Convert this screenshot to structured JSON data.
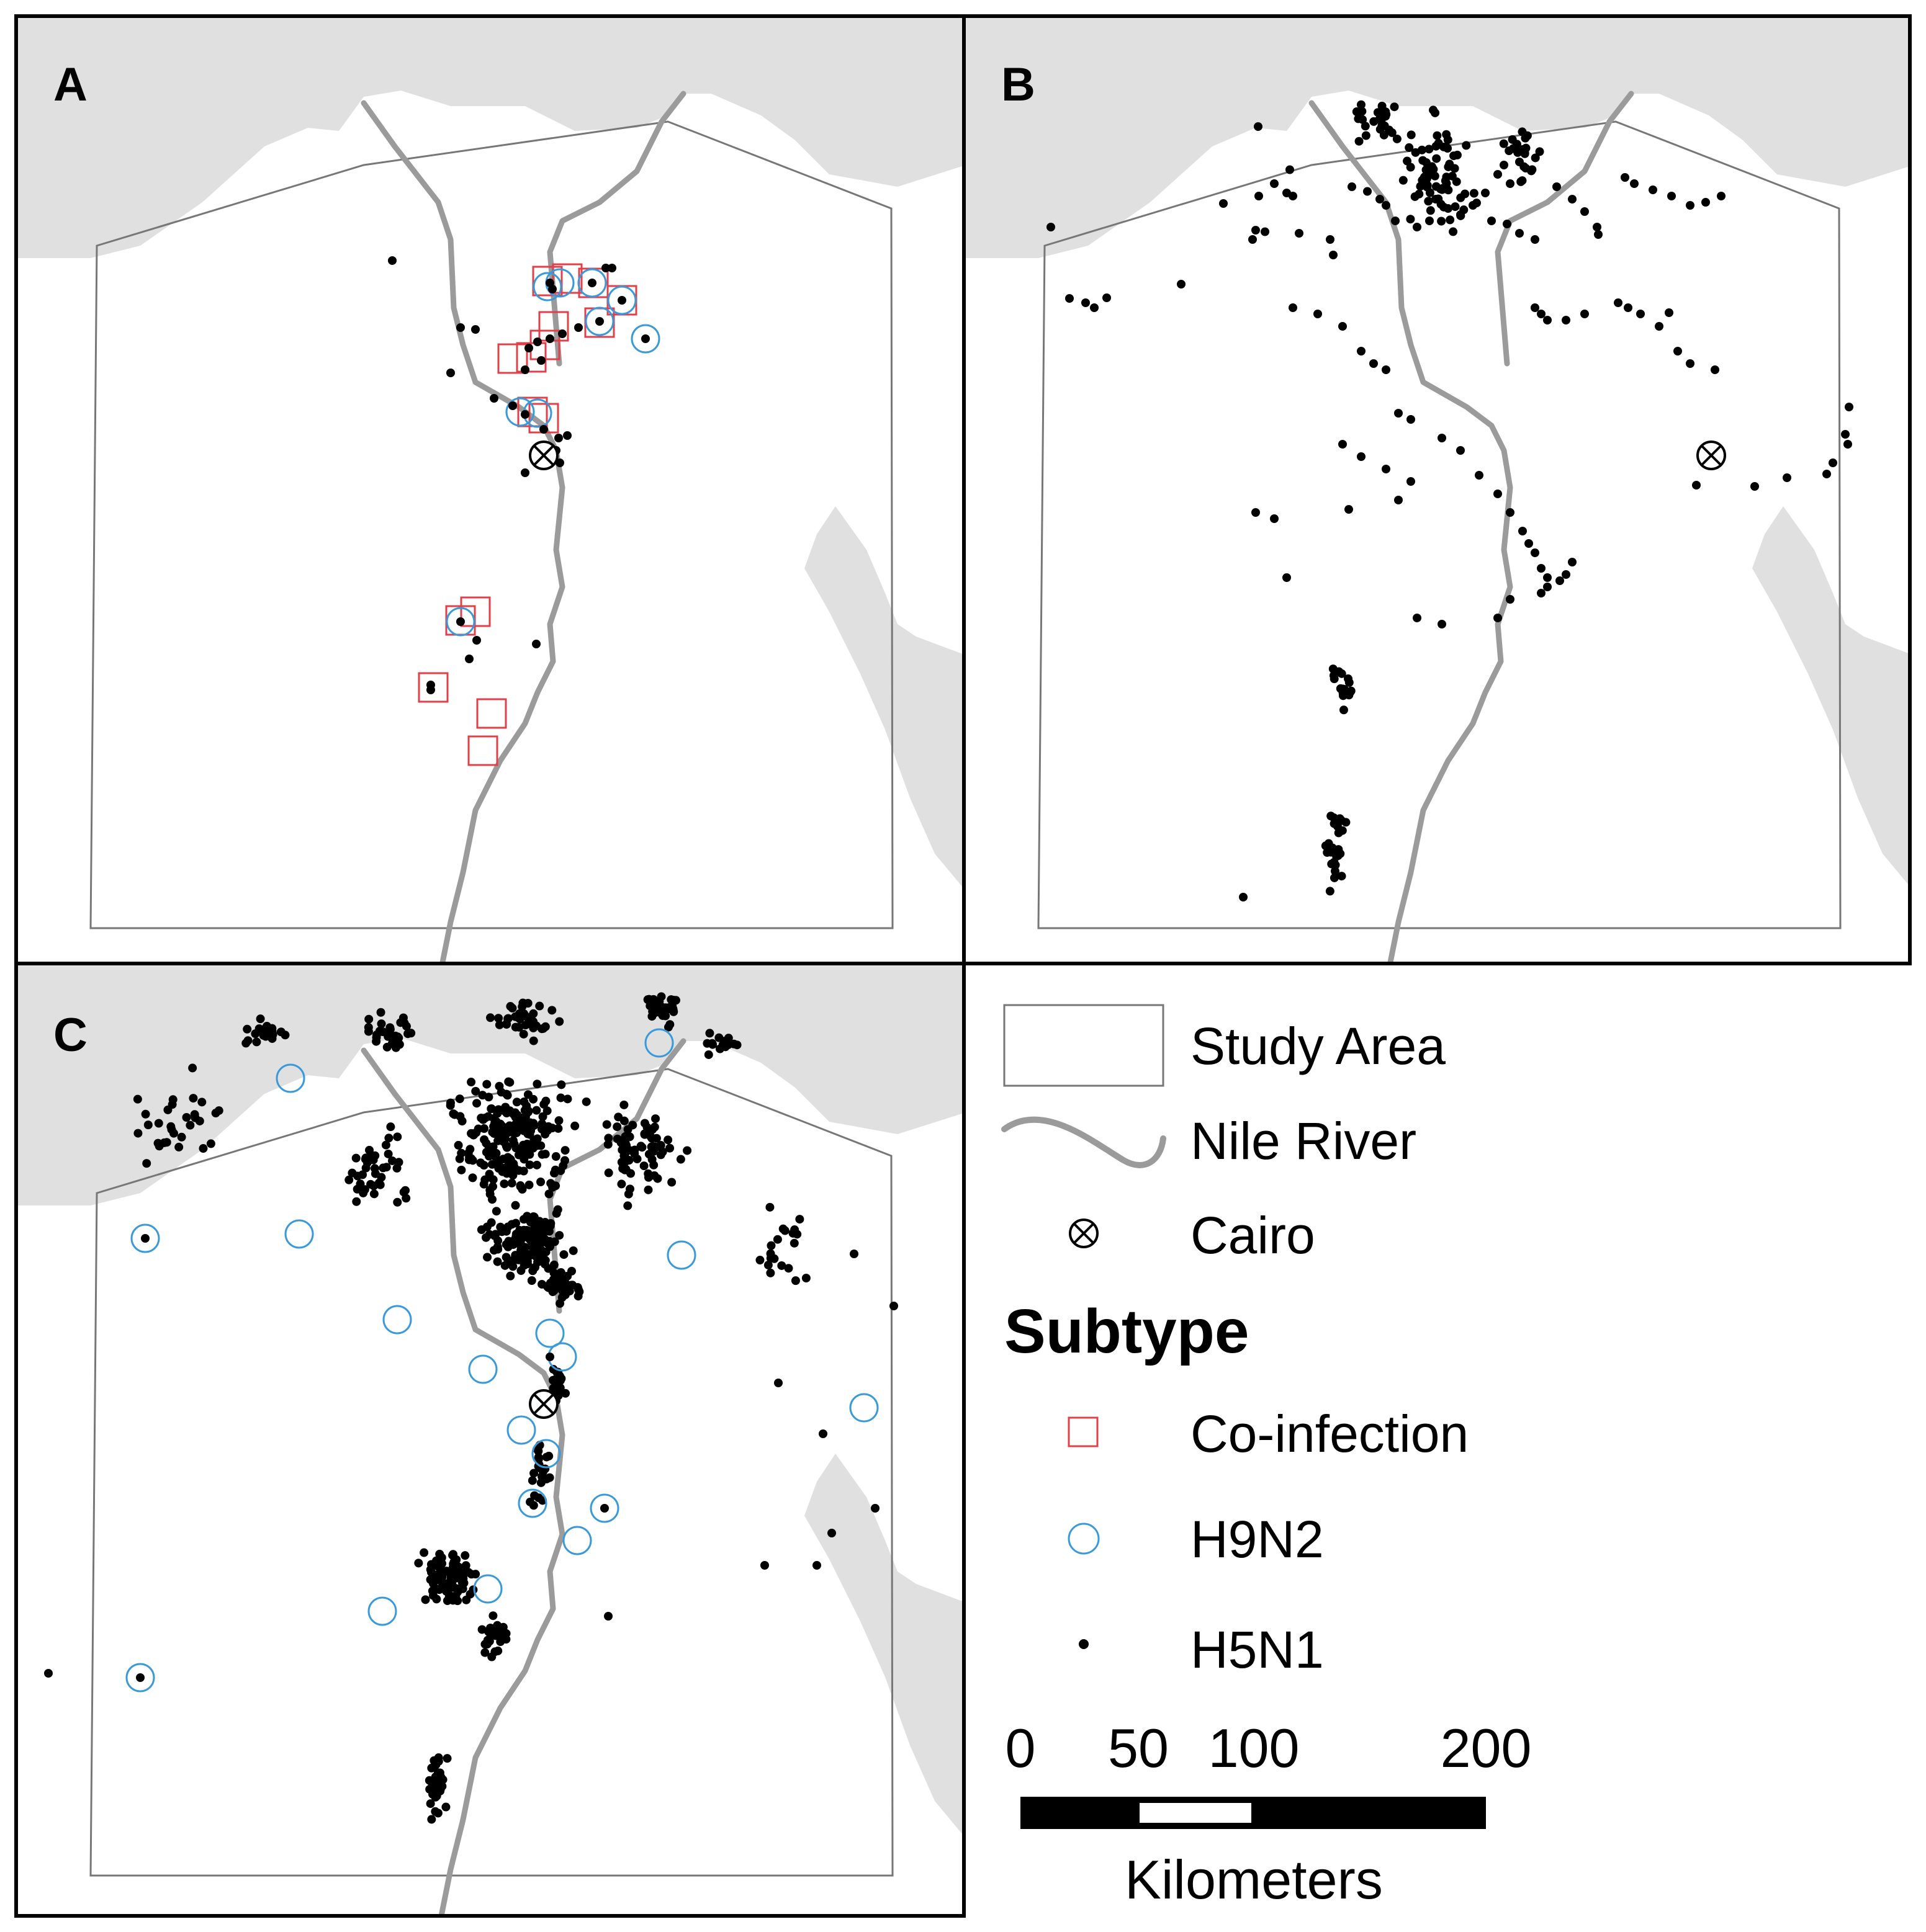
{
  "panels": [
    {
      "id": "A",
      "label": "A"
    },
    {
      "id": "B",
      "label": "B"
    },
    {
      "id": "C",
      "label": "C"
    }
  ],
  "legend": {
    "study_area": "Study Area",
    "nile_river": "Nile River",
    "cairo": "Cairo",
    "heading": "Subtype",
    "coinfection": "Co-infection",
    "h9n2": "H9N2",
    "h5n1": "H5N1"
  },
  "scale_bar": {
    "ticks": [
      "0",
      "50",
      "100",
      "200"
    ],
    "unit": "Kilometers"
  },
  "colors": {
    "coinfection": "#e0404a",
    "h9n2": "#3a9ad9",
    "h5n1": "#000000",
    "nile": "#9b9b9b",
    "sea": "#e0e0e0",
    "study_area_outline": "#777777"
  }
}
